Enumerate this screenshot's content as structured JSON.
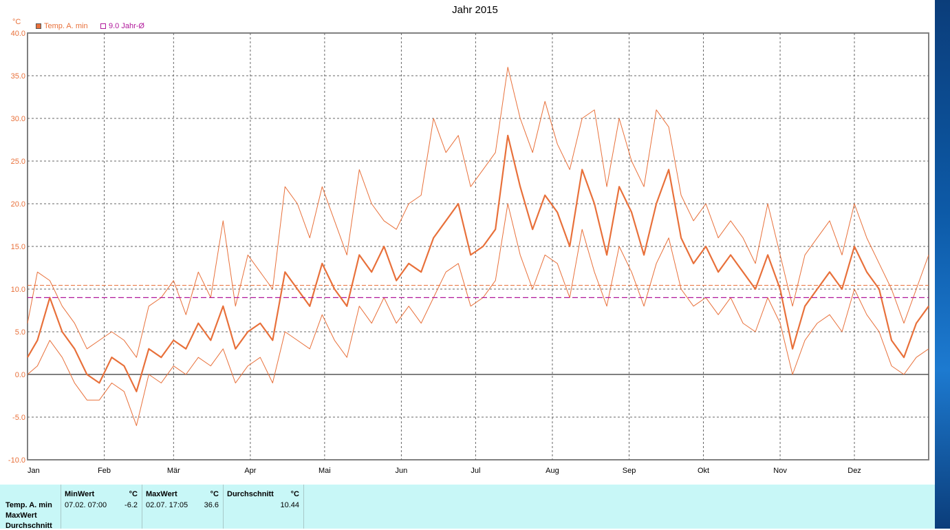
{
  "window": {
    "title": "Jahr 2015"
  },
  "legend": [
    {
      "name": "Temp. A. min",
      "color": "#e8703a"
    },
    {
      "name": "9.0 Jahr-Ø",
      "color": "#b0179a"
    }
  ],
  "chart_data": {
    "type": "line",
    "title": "Jahr 2015",
    "ylabel": "°C",
    "ylim": [
      -10,
      40
    ],
    "y_ticks": [
      "40.0",
      "35.0",
      "30.0",
      "25.0",
      "20.0",
      "15.0",
      "10.0",
      "5.0",
      "0.0",
      "-5.0",
      "-10.0"
    ],
    "x_ticks": [
      "Jan",
      "Feb",
      "Mär",
      "Apr",
      "Mai",
      "Jun",
      "Jul",
      "Aug",
      "Sep",
      "Okt",
      "Nov",
      "Dez"
    ],
    "xlim": [
      1,
      365
    ],
    "grid": true,
    "legend_position": "top-left",
    "series": [
      {
        "name": "Temp. A. min",
        "color": "#e8703a",
        "x": [
          1,
          5,
          10,
          15,
          20,
          25,
          30,
          35,
          40,
          45,
          50,
          55,
          60,
          65,
          70,
          75,
          80,
          85,
          90,
          95,
          100,
          105,
          110,
          115,
          120,
          125,
          130,
          135,
          140,
          145,
          150,
          155,
          160,
          165,
          170,
          175,
          180,
          185,
          190,
          195,
          200,
          205,
          210,
          215,
          220,
          225,
          230,
          235,
          240,
          245,
          250,
          255,
          260,
          265,
          270,
          275,
          280,
          285,
          290,
          295,
          300,
          305,
          310,
          315,
          320,
          325,
          330,
          335,
          340,
          345,
          350,
          355,
          360,
          365
        ],
        "y": [
          2,
          4,
          9,
          5,
          3,
          0,
          -1,
          2,
          1,
          -2,
          3,
          2,
          4,
          3,
          6,
          4,
          8,
          3,
          5,
          6,
          4,
          12,
          10,
          8,
          13,
          10,
          8,
          14,
          12,
          15,
          11,
          13,
          12,
          16,
          18,
          20,
          14,
          15,
          17,
          28,
          22,
          17,
          21,
          19,
          15,
          24,
          20,
          14,
          22,
          19,
          14,
          20,
          24,
          16,
          13,
          15,
          12,
          14,
          12,
          10,
          14,
          10,
          3,
          8,
          10,
          12,
          10,
          15,
          12,
          10,
          4,
          2,
          6,
          8
        ]
      },
      {
        "name": "band-upper",
        "color": "#e8703a",
        "x": [
          1,
          5,
          10,
          15,
          20,
          25,
          30,
          35,
          40,
          45,
          50,
          55,
          60,
          65,
          70,
          75,
          80,
          85,
          90,
          95,
          100,
          105,
          110,
          115,
          120,
          125,
          130,
          135,
          140,
          145,
          150,
          155,
          160,
          165,
          170,
          175,
          180,
          185,
          190,
          195,
          200,
          205,
          210,
          215,
          220,
          225,
          230,
          235,
          240,
          245,
          250,
          255,
          260,
          265,
          270,
          275,
          280,
          285,
          290,
          295,
          300,
          305,
          310,
          315,
          320,
          325,
          330,
          335,
          340,
          345,
          350,
          355,
          360,
          365
        ],
        "y": [
          6,
          12,
          11,
          8,
          6,
          3,
          4,
          5,
          4,
          2,
          8,
          9,
          11,
          7,
          12,
          9,
          18,
          8,
          14,
          12,
          10,
          22,
          20,
          16,
          22,
          18,
          14,
          24,
          20,
          18,
          17,
          20,
          21,
          30,
          26,
          28,
          22,
          24,
          26,
          36,
          30,
          26,
          32,
          27,
          24,
          30,
          31,
          22,
          30,
          25,
          22,
          31,
          29,
          21,
          18,
          20,
          16,
          18,
          16,
          13,
          20,
          14,
          8,
          14,
          16,
          18,
          14,
          20,
          16,
          13,
          10,
          6,
          10,
          14
        ]
      },
      {
        "name": "band-lower",
        "color": "#e8703a",
        "x": [
          1,
          5,
          10,
          15,
          20,
          25,
          30,
          35,
          40,
          45,
          50,
          55,
          60,
          65,
          70,
          75,
          80,
          85,
          90,
          95,
          100,
          105,
          110,
          115,
          120,
          125,
          130,
          135,
          140,
          145,
          150,
          155,
          160,
          165,
          170,
          175,
          180,
          185,
          190,
          195,
          200,
          205,
          210,
          215,
          220,
          225,
          230,
          235,
          240,
          245,
          250,
          255,
          260,
          265,
          270,
          275,
          280,
          285,
          290,
          295,
          300,
          305,
          310,
          315,
          320,
          325,
          330,
          335,
          340,
          345,
          350,
          355,
          360,
          365
        ],
        "y": [
          0,
          1,
          4,
          2,
          -1,
          -3,
          -3,
          -1,
          -2,
          -6,
          0,
          -1,
          1,
          0,
          2,
          1,
          3,
          -1,
          1,
          2,
          -1,
          5,
          4,
          3,
          7,
          4,
          2,
          8,
          6,
          9,
          6,
          8,
          6,
          9,
          12,
          13,
          8,
          9,
          11,
          20,
          14,
          10,
          14,
          13,
          9,
          17,
          12,
          8,
          15,
          12,
          8,
          13,
          16,
          10,
          8,
          9,
          7,
          9,
          6,
          5,
          9,
          6,
          0,
          4,
          6,
          7,
          5,
          10,
          7,
          5,
          1,
          0,
          2,
          3
        ]
      },
      {
        "name": "avg-dashed",
        "color": "#e8703a",
        "y": 10.44
      },
      {
        "name": "9.0 Jahr-Ø",
        "color": "#b0179a",
        "y": 9.0
      }
    ]
  },
  "stats": {
    "row_labels": [
      "Temp. A. min",
      "MaxWert",
      "Durchschnitt"
    ],
    "minwert": {
      "header": "MinWert",
      "unit": "°C",
      "date": "07.02.  07:00",
      "value": "-6.2"
    },
    "maxwert": {
      "header": "MaxWert",
      "unit": "°C",
      "date": "02.07.  17:05",
      "value": "36.6"
    },
    "durchschnitt": {
      "header": "Durchschnitt",
      "unit": "°C",
      "value": "10.44"
    }
  }
}
